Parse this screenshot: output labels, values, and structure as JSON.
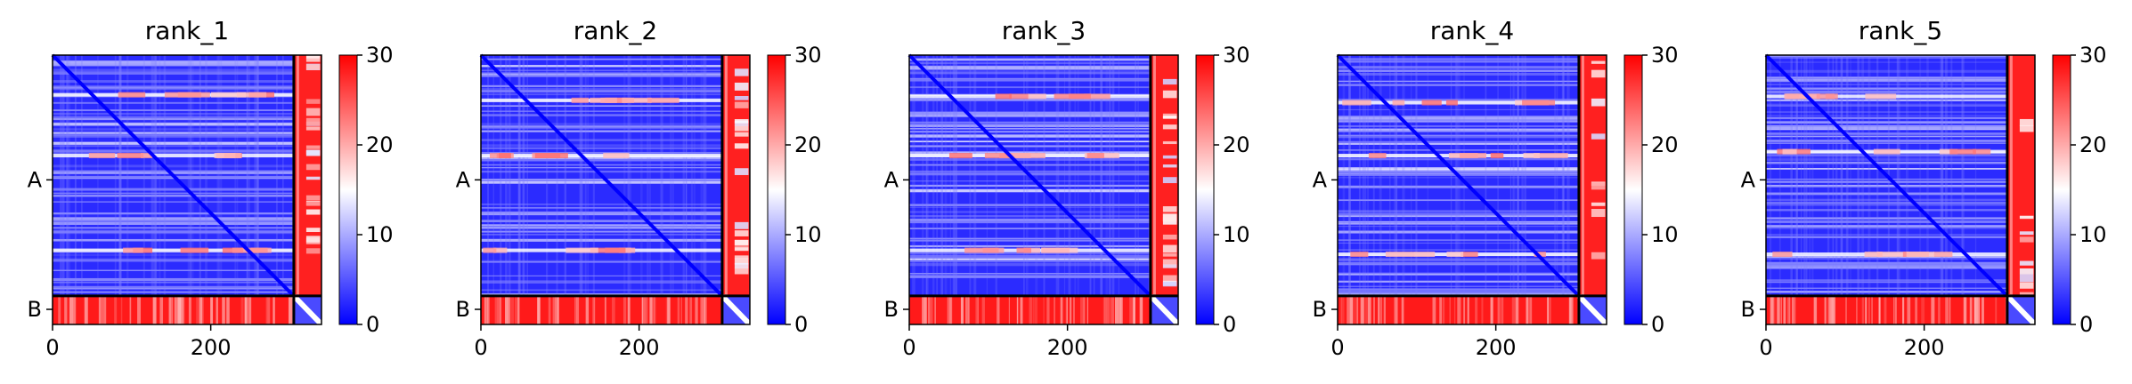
{
  "chart_data": {
    "type": "heatmap",
    "panel_count": 5,
    "shared": {
      "x_ticks": [
        0,
        200
      ],
      "x_tick_labels": [
        "0",
        "200"
      ],
      "y_tick_labels": [
        "A",
        "B"
      ],
      "y_tick_positions": [
        158,
        322
      ],
      "chain_boundary": 305,
      "total_length": 340,
      "xlim": [
        0,
        340
      ],
      "colorbar": {
        "vmin": 0,
        "vmax": 30,
        "ticks": [
          0,
          10,
          20,
          30
        ],
        "tick_labels": [
          "0",
          "10",
          "20",
          "30"
        ],
        "colors": [
          "#0000ff",
          "#ffffff",
          "#ff0000"
        ]
      }
    },
    "panels": [
      {
        "title": "rank_1",
        "seed": 11,
        "strong_rows": [
          48,
          125,
          245
        ],
        "strip_uniformity": 0.35
      },
      {
        "title": "rank_2",
        "seed": 23,
        "strong_rows": [
          55,
          125,
          245
        ],
        "strip_uniformity": 0.45
      },
      {
        "title": "rank_3",
        "seed": 37,
        "strong_rows": [
          50,
          125,
          245
        ],
        "strip_uniformity": 0.4
      },
      {
        "title": "rank_4",
        "seed": 41,
        "strong_rows": [
          58,
          125,
          250
        ],
        "strip_uniformity": 0.85
      },
      {
        "title": "rank_5",
        "seed": 59,
        "strong_rows": [
          50,
          120,
          250
        ],
        "strip_uniformity": 0.8
      }
    ]
  }
}
